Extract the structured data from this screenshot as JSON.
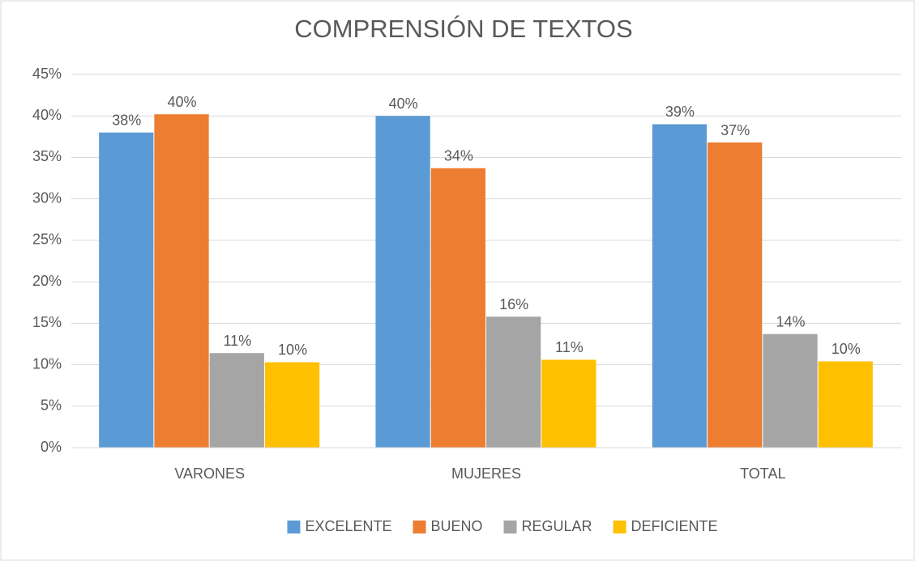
{
  "chart_data": {
    "type": "bar",
    "title": "COMPRENSIÓN DE TEXTOS",
    "categories": [
      "VARONES",
      "MUJERES",
      "TOTAL"
    ],
    "series": [
      {
        "name": "EXCELENTE",
        "color": "#5b9bd5",
        "values": [
          38,
          40,
          39
        ],
        "value_labels": [
          "38%",
          "40%",
          "39%"
        ]
      },
      {
        "name": "BUENO",
        "color": "#ed7d31",
        "values": [
          40.2,
          33.7,
          36.8
        ],
        "value_labels": [
          "40%",
          "34%",
          "37%"
        ]
      },
      {
        "name": "REGULAR",
        "color": "#a5a5a5",
        "values": [
          11.4,
          15.8,
          13.7
        ],
        "value_labels": [
          "11%",
          "16%",
          "14%"
        ]
      },
      {
        "name": "DEFICIENTE",
        "color": "#ffc000",
        "values": [
          10.3,
          10.6,
          10.4
        ],
        "value_labels": [
          "10%",
          "11%",
          "10%"
        ]
      }
    ],
    "ylim": [
      0,
      45
    ],
    "yticks": [
      {
        "value": 0,
        "label": "0%"
      },
      {
        "value": 5,
        "label": "5%"
      },
      {
        "value": 10,
        "label": "10%"
      },
      {
        "value": 15,
        "label": "15%"
      },
      {
        "value": 20,
        "label": "20%"
      },
      {
        "value": 25,
        "label": "25%"
      },
      {
        "value": 30,
        "label": "30%"
      },
      {
        "value": 35,
        "label": "35%"
      },
      {
        "value": 40,
        "label": "40%"
      },
      {
        "value": 45,
        "label": "45%"
      }
    ],
    "grid": true,
    "legend": "bottom"
  }
}
